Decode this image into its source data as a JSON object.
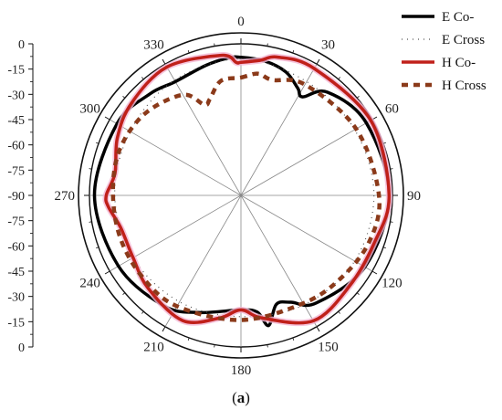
{
  "chart_data": {
    "type": "polar",
    "title": "",
    "caption_open": "(",
    "caption_letter": "a",
    "caption_close": ")",
    "angle_ticks": [
      0,
      30,
      60,
      90,
      120,
      150,
      180,
      210,
      240,
      270,
      300,
      330
    ],
    "radial_range": [
      -90,
      0
    ],
    "radial_tick_labels": [
      "0",
      "-15",
      "-30",
      "-45",
      "-60",
      "-75",
      "-90",
      "-75",
      "-60",
      "-45",
      "-30",
      "-15",
      "0"
    ],
    "legend_position": "top-right",
    "series": [
      {
        "name": "E Co-",
        "color": "#000000",
        "style": "solid",
        "points": [
          [
            0,
            -8
          ],
          [
            10,
            -9
          ],
          [
            20,
            -12
          ],
          [
            28,
            -18
          ],
          [
            32,
            -21
          ],
          [
            40,
            -10
          ],
          [
            60,
            -4
          ],
          [
            90,
            -2
          ],
          [
            120,
            -5
          ],
          [
            145,
            -12
          ],
          [
            155,
            -20
          ],
          [
            162,
            -22
          ],
          [
            168,
            -11
          ],
          [
            172,
            -20
          ],
          [
            180,
            -22
          ],
          [
            200,
            -16
          ],
          [
            215,
            -10
          ],
          [
            240,
            -6
          ],
          [
            270,
            -3
          ],
          [
            300,
            -5
          ],
          [
            318,
            -9
          ],
          [
            330,
            -12
          ],
          [
            345,
            -10
          ],
          [
            355,
            -8
          ]
        ]
      },
      {
        "name": "E Cross",
        "color": "#555555",
        "style": "dotted",
        "points": [
          [
            0,
            -9
          ],
          [
            30,
            -12
          ],
          [
            60,
            -12
          ],
          [
            90,
            -11
          ],
          [
            120,
            -12
          ],
          [
            150,
            -15
          ],
          [
            180,
            -18
          ],
          [
            210,
            -17
          ],
          [
            240,
            -16
          ],
          [
            270,
            -15
          ],
          [
            300,
            -14
          ],
          [
            330,
            -11
          ]
        ]
      },
      {
        "name": "H Co-",
        "color": "#c0201a",
        "style": "solid",
        "points": [
          [
            0,
            -11
          ],
          [
            8,
            -9
          ],
          [
            15,
            -5
          ],
          [
            30,
            -3
          ],
          [
            60,
            -1
          ],
          [
            90,
            -2
          ],
          [
            110,
            -6
          ],
          [
            130,
            -6
          ],
          [
            150,
            -4
          ],
          [
            170,
            -16
          ],
          [
            180,
            -22
          ],
          [
            190,
            -16
          ],
          [
            205,
            -8
          ],
          [
            225,
            -12
          ],
          [
            240,
            -16
          ],
          [
            255,
            -16
          ],
          [
            265,
            -11
          ],
          [
            270,
            -10
          ],
          [
            280,
            -14
          ],
          [
            295,
            -9
          ],
          [
            310,
            -5
          ],
          [
            330,
            -2
          ],
          [
            352,
            -6
          ],
          [
            358,
            -11
          ]
        ]
      },
      {
        "name": "H Cross",
        "color": "#8b3a1a",
        "style": "dashed",
        "points": [
          [
            0,
            -20
          ],
          [
            8,
            -17
          ],
          [
            15,
            -19
          ],
          [
            30,
            -14
          ],
          [
            60,
            -11
          ],
          [
            90,
            -8
          ],
          [
            110,
            -9
          ],
          [
            130,
            -13
          ],
          [
            150,
            -16
          ],
          [
            180,
            -16
          ],
          [
            210,
            -14
          ],
          [
            230,
            -14
          ],
          [
            250,
            -14
          ],
          [
            270,
            -14
          ],
          [
            290,
            -13
          ],
          [
            310,
            -15
          ],
          [
            330,
            -21
          ],
          [
            338,
            -32
          ],
          [
            342,
            -30
          ],
          [
            350,
            -21
          ]
        ]
      }
    ]
  }
}
